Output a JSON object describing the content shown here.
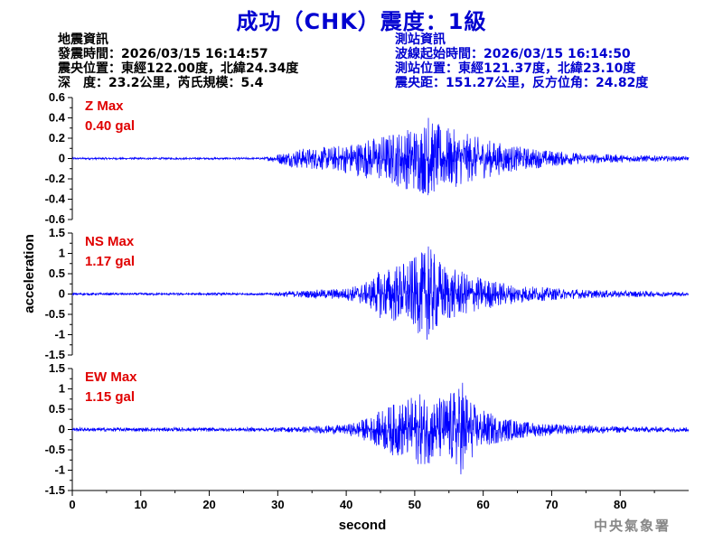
{
  "title": "成功（CHK）震度：1級",
  "event_info": {
    "heading": "地震資訊",
    "time": "發震時間：2026/03/15 16:14:57",
    "epicenter": "震央位置：東經122.00度，北緯24.34度",
    "depth_magnitude": "深　度：23.2公里，芮氏規模：5.4"
  },
  "station_info": {
    "heading": "測站資訊",
    "wave_start": "波線起始時間：2026/03/15 16:14:50",
    "location": "測站位置：東經121.37度，北緯23.10度",
    "distance": "震央距：151.27公里，反方位角：24.82度"
  },
  "agency": "中央氣象署",
  "colors": {
    "title": "#0000d0",
    "trace": "#0000ff",
    "label": "#e00000",
    "axis": "#000000"
  },
  "chart_data": {
    "type": "line",
    "xlabel": "second",
    "ylabel": "acceleration",
    "xlim": [
      0,
      90
    ],
    "x_ticks": [
      0,
      10,
      20,
      30,
      40,
      50,
      60,
      70,
      80
    ],
    "panels": [
      {
        "component": "Z",
        "label": "Z Max",
        "max_text": "0.40 gal",
        "max": 0.4,
        "ylim": [
          -0.6,
          0.6
        ],
        "y_ticks": [
          -0.6,
          -0.4,
          -0.2,
          0,
          0.2,
          0.4,
          0.6
        ],
        "envelope": [
          [
            0,
            0.01
          ],
          [
            28,
            0.01
          ],
          [
            30,
            0.05
          ],
          [
            33,
            0.1
          ],
          [
            38,
            0.12
          ],
          [
            42,
            0.18
          ],
          [
            46,
            0.25
          ],
          [
            50,
            0.33
          ],
          [
            52,
            0.38
          ],
          [
            54,
            0.33
          ],
          [
            56,
            0.28
          ],
          [
            60,
            0.2
          ],
          [
            65,
            0.12
          ],
          [
            70,
            0.08
          ],
          [
            75,
            0.05
          ],
          [
            80,
            0.04
          ],
          [
            85,
            0.03
          ],
          [
            90,
            0.02
          ]
        ]
      },
      {
        "component": "NS",
        "label": "NS Max",
        "max_text": "1.17 gal",
        "max": 1.17,
        "ylim": [
          -1.5,
          1.5
        ],
        "y_ticks": [
          -1.5,
          -1,
          -0.5,
          0,
          0.5,
          1,
          1.5
        ],
        "envelope": [
          [
            0,
            0.03
          ],
          [
            29,
            0.03
          ],
          [
            31,
            0.07
          ],
          [
            35,
            0.1
          ],
          [
            40,
            0.15
          ],
          [
            43,
            0.3
          ],
          [
            45,
            0.6
          ],
          [
            48,
            0.8
          ],
          [
            50,
            0.9
          ],
          [
            52,
            1.17
          ],
          [
            54,
            0.8
          ],
          [
            56,
            0.6
          ],
          [
            60,
            0.4
          ],
          [
            64,
            0.25
          ],
          [
            70,
            0.15
          ],
          [
            76,
            0.1
          ],
          [
            85,
            0.07
          ],
          [
            90,
            0.05
          ]
        ]
      },
      {
        "component": "EW",
        "label": "EW Max",
        "max_text": "1.15 gal",
        "max": 1.15,
        "ylim": [
          -1.5,
          1.5
        ],
        "y_ticks": [
          -1.5,
          -1,
          -0.5,
          0,
          0.5,
          1,
          1.5
        ],
        "envelope": [
          [
            0,
            0.05
          ],
          [
            29,
            0.05
          ],
          [
            32,
            0.07
          ],
          [
            37,
            0.1
          ],
          [
            40,
            0.12
          ],
          [
            44,
            0.35
          ],
          [
            46,
            0.6
          ],
          [
            48,
            0.7
          ],
          [
            51,
            0.9
          ],
          [
            53,
            0.8
          ],
          [
            55,
            0.9
          ],
          [
            57,
            1.15
          ],
          [
            59,
            0.55
          ],
          [
            62,
            0.35
          ],
          [
            66,
            0.2
          ],
          [
            72,
            0.12
          ],
          [
            80,
            0.08
          ],
          [
            90,
            0.06
          ]
        ]
      }
    ]
  }
}
